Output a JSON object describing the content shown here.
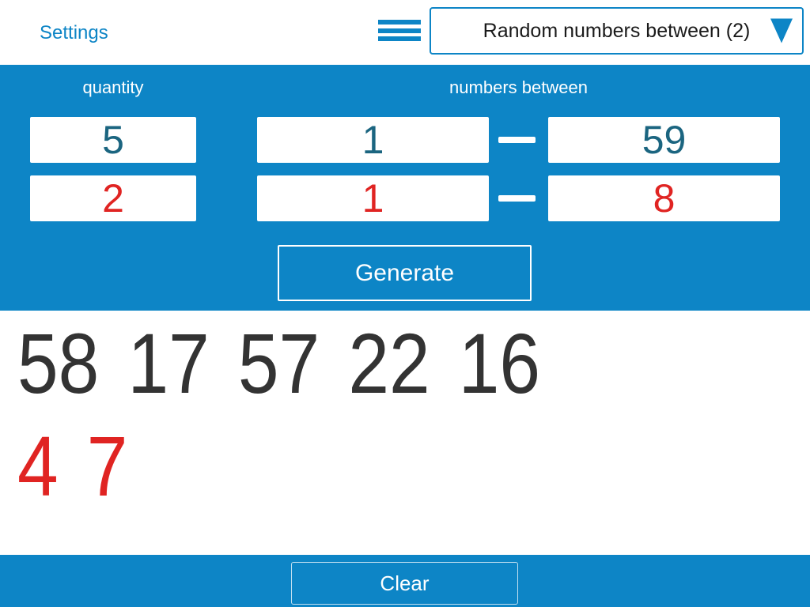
{
  "colors": {
    "accent": "#0d85c6",
    "set1_text": "#1b6580",
    "set2_text": "#e02422",
    "result1_text": "#333333",
    "result2_text": "#e02422"
  },
  "header": {
    "settings_label": "Settings",
    "dropdown_selected": "Random numbers between (2)"
  },
  "panel": {
    "quantity_label": "quantity",
    "numbers_between_label": "numbers between",
    "sets": [
      {
        "quantity": "5",
        "min": "1",
        "max": "59",
        "color": "#1b6580"
      },
      {
        "quantity": "2",
        "min": "1",
        "max": "8",
        "color": "#e02422"
      }
    ],
    "generate_label": "Generate"
  },
  "results": {
    "sets": [
      {
        "values": [
          "58",
          "17",
          "57",
          "22",
          "16"
        ],
        "color": "#333333"
      },
      {
        "values": [
          "4",
          "7"
        ],
        "color": "#e02422"
      }
    ]
  },
  "footer": {
    "clear_label": "Clear"
  }
}
